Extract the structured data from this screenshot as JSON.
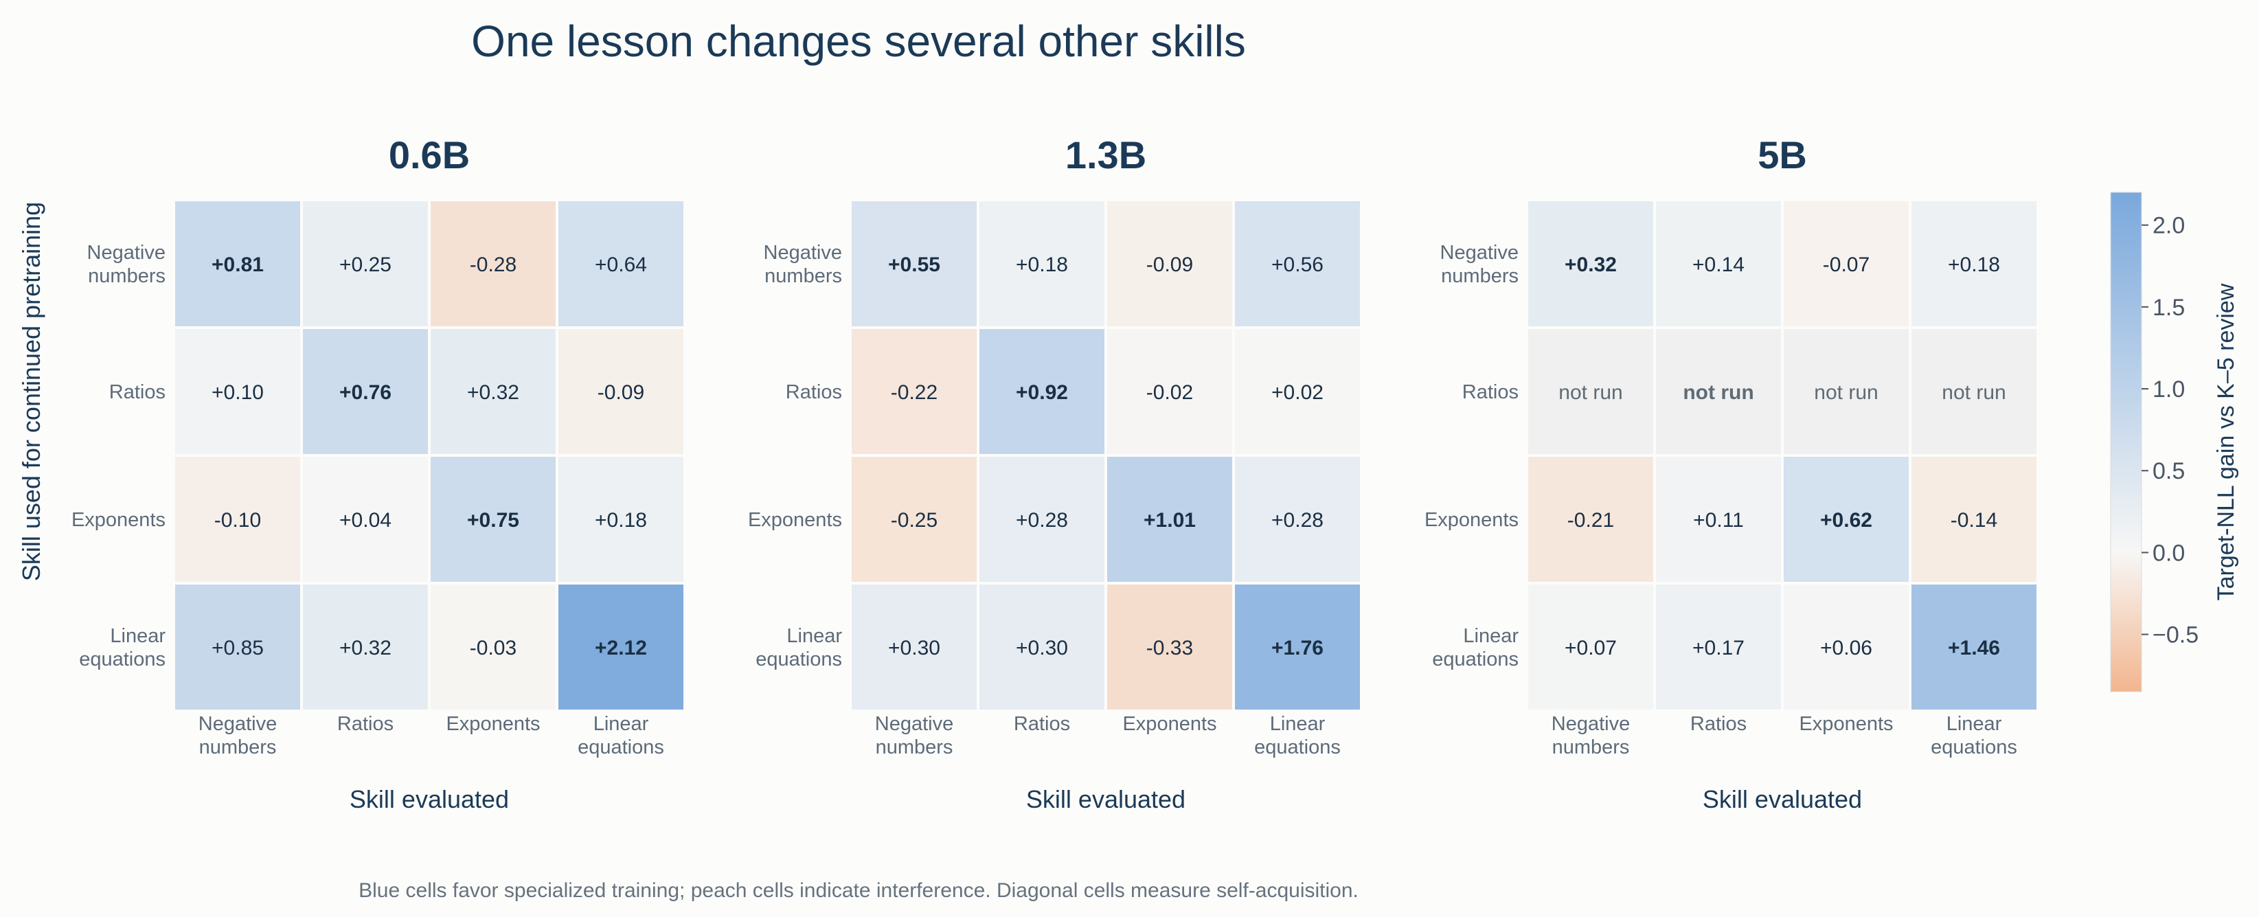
{
  "chart_data": {
    "type": "heatmap",
    "title": "One lesson changes several other skills",
    "ylabel": "Skill used for continued pretraining",
    "rows": [
      [
        "Negative",
        "numbers"
      ],
      [
        "Ratios"
      ],
      [
        "Exponents"
      ],
      [
        "Linear",
        "equations"
      ]
    ],
    "columns": [
      [
        "Negative",
        "numbers"
      ],
      [
        "Ratios"
      ],
      [
        "Exponents"
      ],
      [
        "Linear",
        "equations"
      ]
    ],
    "na_label": "not run",
    "panels": [
      {
        "title": "0.6B",
        "xlabel": "Skill evaluated",
        "values": [
          [
            0.81,
            0.25,
            -0.28,
            0.64
          ],
          [
            0.1,
            0.76,
            0.32,
            -0.09
          ],
          [
            -0.1,
            0.04,
            0.75,
            0.18
          ],
          [
            0.85,
            0.32,
            -0.03,
            2.12
          ]
        ]
      },
      {
        "title": "1.3B",
        "xlabel": "Skill evaluated",
        "values": [
          [
            0.55,
            0.18,
            -0.09,
            0.56
          ],
          [
            -0.22,
            0.92,
            -0.02,
            0.02
          ],
          [
            -0.25,
            0.28,
            1.01,
            0.28
          ],
          [
            0.3,
            0.3,
            -0.33,
            1.76
          ]
        ]
      },
      {
        "title": "5B",
        "xlabel": "Skill evaluated",
        "values": [
          [
            0.32,
            0.14,
            -0.07,
            0.18
          ],
          [
            null,
            null,
            null,
            null
          ],
          [
            -0.21,
            0.11,
            0.62,
            -0.14
          ],
          [
            0.07,
            0.17,
            0.06,
            1.46
          ]
        ]
      }
    ],
    "colorbar": {
      "label": "Target-NLL gain vs K–5 review",
      "vmin": -0.85,
      "vmax": 2.2,
      "ticks": [
        2.0,
        1.5,
        1.0,
        0.5,
        0.0,
        -0.5
      ],
      "tick_labels": [
        "2.0",
        "1.5",
        "1.0",
        "0.5",
        "0.0",
        "−0.5"
      ]
    },
    "colors": {
      "negative": "#f2b58f",
      "neutral": "#f7f7f5",
      "positive": "#7aa8dc",
      "not_run": "#eff0ef"
    }
  },
  "caption": "Blue cells favor specialized training; peach cells indicate interference. Diagonal cells measure self-acquisition."
}
